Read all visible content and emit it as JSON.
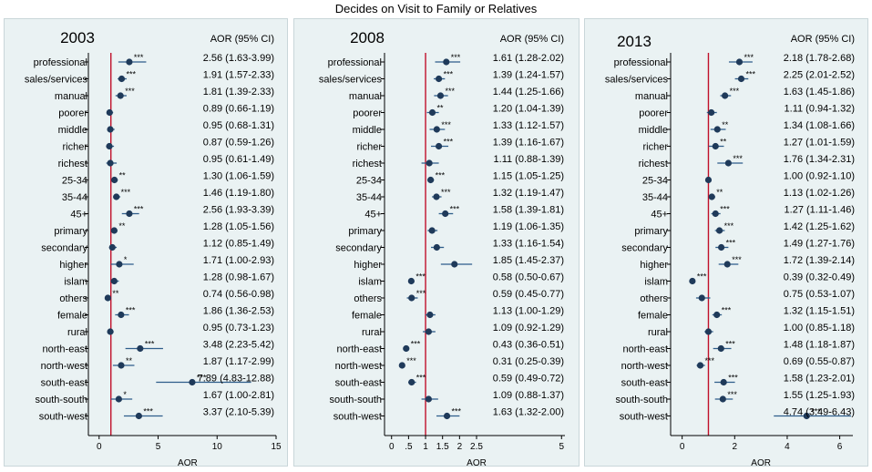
{
  "title": "Decides on Visit to Family or Relatives",
  "colors": {
    "point": "#1f3a5a",
    "ci": "#2e5d8a",
    "reference": "#c0102a",
    "axis": "#000000"
  },
  "chart_data": [
    {
      "type": "scatter",
      "panel_title": "2003",
      "ci_header": "AOR (95% CI)",
      "xlabel": "AOR",
      "xlim": [
        -0.6,
        15
      ],
      "xticks": [
        0,
        5,
        10,
        15
      ],
      "xtick_labels": [
        "0",
        "5",
        "10",
        "15"
      ],
      "reference_line": 1,
      "categories": [
        "professional",
        "sales/services",
        "manual",
        "poorer",
        "middle",
        "richer",
        "richest",
        "25-34",
        "35-44",
        "45+",
        "primary",
        "secondary",
        "higher",
        "islam",
        "others",
        "female",
        "rural",
        "north-east",
        "north-west",
        "south-east",
        "south-south",
        "south-west"
      ],
      "points": [
        {
          "aor": 2.56,
          "lo": 1.63,
          "hi": 3.99,
          "sig": "***"
        },
        {
          "aor": 1.91,
          "lo": 1.57,
          "hi": 2.33,
          "sig": "***"
        },
        {
          "aor": 1.81,
          "lo": 1.39,
          "hi": 2.33,
          "sig": "***"
        },
        {
          "aor": 0.89,
          "lo": 0.66,
          "hi": 1.19,
          "sig": ""
        },
        {
          "aor": 0.95,
          "lo": 0.68,
          "hi": 1.31,
          "sig": ""
        },
        {
          "aor": 0.87,
          "lo": 0.59,
          "hi": 1.26,
          "sig": ""
        },
        {
          "aor": 0.95,
          "lo": 0.61,
          "hi": 1.49,
          "sig": ""
        },
        {
          "aor": 1.3,
          "lo": 1.06,
          "hi": 1.59,
          "sig": "**"
        },
        {
          "aor": 1.46,
          "lo": 1.19,
          "hi": 1.8,
          "sig": "***"
        },
        {
          "aor": 2.56,
          "lo": 1.93,
          "hi": 3.39,
          "sig": "***"
        },
        {
          "aor": 1.28,
          "lo": 1.05,
          "hi": 1.56,
          "sig": "**"
        },
        {
          "aor": 1.12,
          "lo": 0.85,
          "hi": 1.49,
          "sig": ""
        },
        {
          "aor": 1.71,
          "lo": 1.0,
          "hi": 2.93,
          "sig": "*"
        },
        {
          "aor": 1.28,
          "lo": 0.98,
          "hi": 1.67,
          "sig": ""
        },
        {
          "aor": 0.74,
          "lo": 0.56,
          "hi": 0.98,
          "sig": "**"
        },
        {
          "aor": 1.86,
          "lo": 1.36,
          "hi": 2.53,
          "sig": "***"
        },
        {
          "aor": 0.95,
          "lo": 0.73,
          "hi": 1.23,
          "sig": ""
        },
        {
          "aor": 3.48,
          "lo": 2.23,
          "hi": 5.42,
          "sig": "***"
        },
        {
          "aor": 1.87,
          "lo": 1.17,
          "hi": 2.99,
          "sig": "**"
        },
        {
          "aor": 7.89,
          "lo": 4.83,
          "hi": 12.88,
          "sig": "***"
        },
        {
          "aor": 1.67,
          "lo": 1.0,
          "hi": 2.81,
          "sig": "*"
        },
        {
          "aor": 3.37,
          "lo": 2.1,
          "hi": 5.39,
          "sig": "***"
        }
      ],
      "ci_labels": [
        "2.56 (1.63-3.99)",
        "1.91 (1.57-2.33)",
        "1.81 (1.39-2.33)",
        "0.89 (0.66-1.19)",
        "0.95 (0.68-1.31)",
        "0.87 (0.59-1.26)",
        "0.95 (0.61-1.49)",
        "1.30 (1.06-1.59)",
        "1.46 (1.19-1.80)",
        "2.56 (1.93-3.39)",
        "1.28 (1.05-1.56)",
        "1.12 (0.85-1.49)",
        "1.71 (1.00-2.93)",
        "1.28 (0.98-1.67)",
        "0.74 (0.56-0.98)",
        "1.86 (1.36-2.53)",
        "0.95 (0.73-1.23)",
        "3.48 (2.23-5.42)",
        "1.87 (1.17-2.99)",
        "7.89 (4.83-12.88)",
        "1.67 (1.00-2.81)",
        "3.37 (2.10-5.39)"
      ]
    },
    {
      "type": "scatter",
      "panel_title": "2008",
      "ci_header": "AOR (95% CI)",
      "xlabel": "AOR",
      "xlim": [
        -0.1,
        5.1
      ],
      "xticks": [
        0,
        0.5,
        1,
        1.5,
        2,
        2.5,
        5
      ],
      "xtick_labels": [
        "0",
        ".5",
        "1",
        "1.5",
        "2",
        "2.5",
        "5"
      ],
      "reference_line": 1,
      "categories": [
        "professional",
        "sales/services",
        "manual",
        "poorer",
        "middle",
        "richer",
        "richest",
        "25-34",
        "35-44",
        "45+",
        "primary",
        "secondary",
        "higher",
        "islam",
        "others",
        "female",
        "rural",
        "north-east",
        "north-west",
        "south-east",
        "south-south",
        "south-west"
      ],
      "points": [
        {
          "aor": 1.61,
          "lo": 1.28,
          "hi": 2.02,
          "sig": "***"
        },
        {
          "aor": 1.39,
          "lo": 1.24,
          "hi": 1.57,
          "sig": "***"
        },
        {
          "aor": 1.44,
          "lo": 1.25,
          "hi": 1.66,
          "sig": "***"
        },
        {
          "aor": 1.2,
          "lo": 1.04,
          "hi": 1.39,
          "sig": "**"
        },
        {
          "aor": 1.33,
          "lo": 1.12,
          "hi": 1.57,
          "sig": "***"
        },
        {
          "aor": 1.39,
          "lo": 1.16,
          "hi": 1.67,
          "sig": "***"
        },
        {
          "aor": 1.11,
          "lo": 0.88,
          "hi": 1.39,
          "sig": ""
        },
        {
          "aor": 1.15,
          "lo": 1.05,
          "hi": 1.25,
          "sig": "***"
        },
        {
          "aor": 1.32,
          "lo": 1.19,
          "hi": 1.47,
          "sig": "***"
        },
        {
          "aor": 1.58,
          "lo": 1.39,
          "hi": 1.81,
          "sig": "***"
        },
        {
          "aor": 1.19,
          "lo": 1.06,
          "hi": 1.35,
          "sig": ""
        },
        {
          "aor": 1.33,
          "lo": 1.16,
          "hi": 1.54,
          "sig": ""
        },
        {
          "aor": 1.85,
          "lo": 1.45,
          "hi": 2.37,
          "sig": ""
        },
        {
          "aor": 0.58,
          "lo": 0.5,
          "hi": 0.67,
          "sig": "***"
        },
        {
          "aor": 0.59,
          "lo": 0.45,
          "hi": 0.77,
          "sig": "***"
        },
        {
          "aor": 1.13,
          "lo": 1.0,
          "hi": 1.29,
          "sig": ""
        },
        {
          "aor": 1.09,
          "lo": 0.92,
          "hi": 1.29,
          "sig": ""
        },
        {
          "aor": 0.43,
          "lo": 0.36,
          "hi": 0.51,
          "sig": "***"
        },
        {
          "aor": 0.31,
          "lo": 0.25,
          "hi": 0.39,
          "sig": "***"
        },
        {
          "aor": 0.59,
          "lo": 0.49,
          "hi": 0.72,
          "sig": "***"
        },
        {
          "aor": 1.09,
          "lo": 0.88,
          "hi": 1.37,
          "sig": ""
        },
        {
          "aor": 1.63,
          "lo": 1.32,
          "hi": 2.0,
          "sig": "***"
        }
      ],
      "ci_labels": [
        "1.61 (1.28-2.02)",
        "1.39 (1.24-1.57)",
        "1.44 (1.25-1.66)",
        "1.20 (1.04-1.39)",
        "1.33 (1.12-1.57)",
        "1.39 (1.16-1.67)",
        "1.11 (0.88-1.39)",
        "1.15 (1.05-1.25)",
        "1.32 (1.19-1.47)",
        "1.58 (1.39-1.81)",
        "1.19 (1.06-1.35)",
        "1.33 (1.16-1.54)",
        "1.85 (1.45-2.37)",
        "0.58 (0.50-0.67)",
        "0.59 (0.45-0.77)",
        "1.13 (1.00-1.29)",
        "1.09 (0.92-1.29)",
        "0.43 (0.36-0.51)",
        "0.31 (0.25-0.39)",
        "0.59 (0.49-0.72)",
        "1.09 (0.88-1.37)",
        "1.63 (1.32-2.00)"
      ]
    },
    {
      "type": "scatter",
      "panel_title": "2013",
      "ci_header": "AOR (95% CI)",
      "xlabel": "AOR",
      "xlim": [
        -0.3,
        6.5
      ],
      "xticks": [
        0,
        2,
        4,
        6
      ],
      "xtick_labels": [
        "0",
        "2",
        "4",
        "6"
      ],
      "reference_line": 1,
      "categories": [
        "professional",
        "sales/services",
        "manual",
        "poorer",
        "middle",
        "richer",
        "richest",
        "25-34",
        "35-44",
        "45+",
        "primary",
        "secondary",
        "higher",
        "islam",
        "others",
        "female",
        "rural",
        "north-east",
        "north-west",
        "south-east",
        "south-south",
        "south-west"
      ],
      "points": [
        {
          "aor": 2.18,
          "lo": 1.78,
          "hi": 2.68,
          "sig": "***"
        },
        {
          "aor": 2.25,
          "lo": 2.01,
          "hi": 2.52,
          "sig": "***"
        },
        {
          "aor": 1.63,
          "lo": 1.45,
          "hi": 1.86,
          "sig": "***"
        },
        {
          "aor": 1.11,
          "lo": 0.94,
          "hi": 1.32,
          "sig": ""
        },
        {
          "aor": 1.34,
          "lo": 1.08,
          "hi": 1.66,
          "sig": "**"
        },
        {
          "aor": 1.27,
          "lo": 1.01,
          "hi": 1.59,
          "sig": "**"
        },
        {
          "aor": 1.76,
          "lo": 1.34,
          "hi": 2.31,
          "sig": "***"
        },
        {
          "aor": 1.0,
          "lo": 0.92,
          "hi": 1.1,
          "sig": ""
        },
        {
          "aor": 1.13,
          "lo": 1.02,
          "hi": 1.26,
          "sig": "**"
        },
        {
          "aor": 1.27,
          "lo": 1.11,
          "hi": 1.46,
          "sig": "***"
        },
        {
          "aor": 1.42,
          "lo": 1.25,
          "hi": 1.62,
          "sig": "***"
        },
        {
          "aor": 1.49,
          "lo": 1.27,
          "hi": 1.76,
          "sig": "***"
        },
        {
          "aor": 1.72,
          "lo": 1.39,
          "hi": 2.14,
          "sig": "***"
        },
        {
          "aor": 0.39,
          "lo": 0.32,
          "hi": 0.49,
          "sig": "***"
        },
        {
          "aor": 0.75,
          "lo": 0.53,
          "hi": 1.07,
          "sig": ""
        },
        {
          "aor": 1.32,
          "lo": 1.15,
          "hi": 1.51,
          "sig": "***"
        },
        {
          "aor": 1.0,
          "lo": 0.85,
          "hi": 1.18,
          "sig": ""
        },
        {
          "aor": 1.48,
          "lo": 1.18,
          "hi": 1.87,
          "sig": "***"
        },
        {
          "aor": 0.69,
          "lo": 0.55,
          "hi": 0.87,
          "sig": "***"
        },
        {
          "aor": 1.58,
          "lo": 1.23,
          "hi": 2.01,
          "sig": "***"
        },
        {
          "aor": 1.55,
          "lo": 1.25,
          "hi": 1.93,
          "sig": "***"
        },
        {
          "aor": 4.74,
          "lo": 3.49,
          "hi": 6.43,
          "sig": "***"
        }
      ],
      "ci_labels": [
        "2.18 (1.78-2.68)",
        "2.25 (2.01-2.52)",
        "1.63 (1.45-1.86)",
        "1.11 (0.94-1.32)",
        "1.34 (1.08-1.66)",
        "1.27 (1.01-1.59)",
        "1.76 (1.34-2.31)",
        "1.00 (0.92-1.10)",
        "1.13 (1.02-1.26)",
        "1.27 (1.11-1.46)",
        "1.42 (1.25-1.62)",
        "1.49 (1.27-1.76)",
        "1.72 (1.39-2.14)",
        "0.39 (0.32-0.49)",
        "0.75 (0.53-1.07)",
        "1.32 (1.15-1.51)",
        "1.00 (0.85-1.18)",
        "1.48 (1.18-1.87)",
        "0.69 (0.55-0.87)",
        "1.58 (1.23-2.01)",
        "1.55 (1.25-1.93)",
        "4.74 (3.49-6.43)"
      ]
    }
  ]
}
